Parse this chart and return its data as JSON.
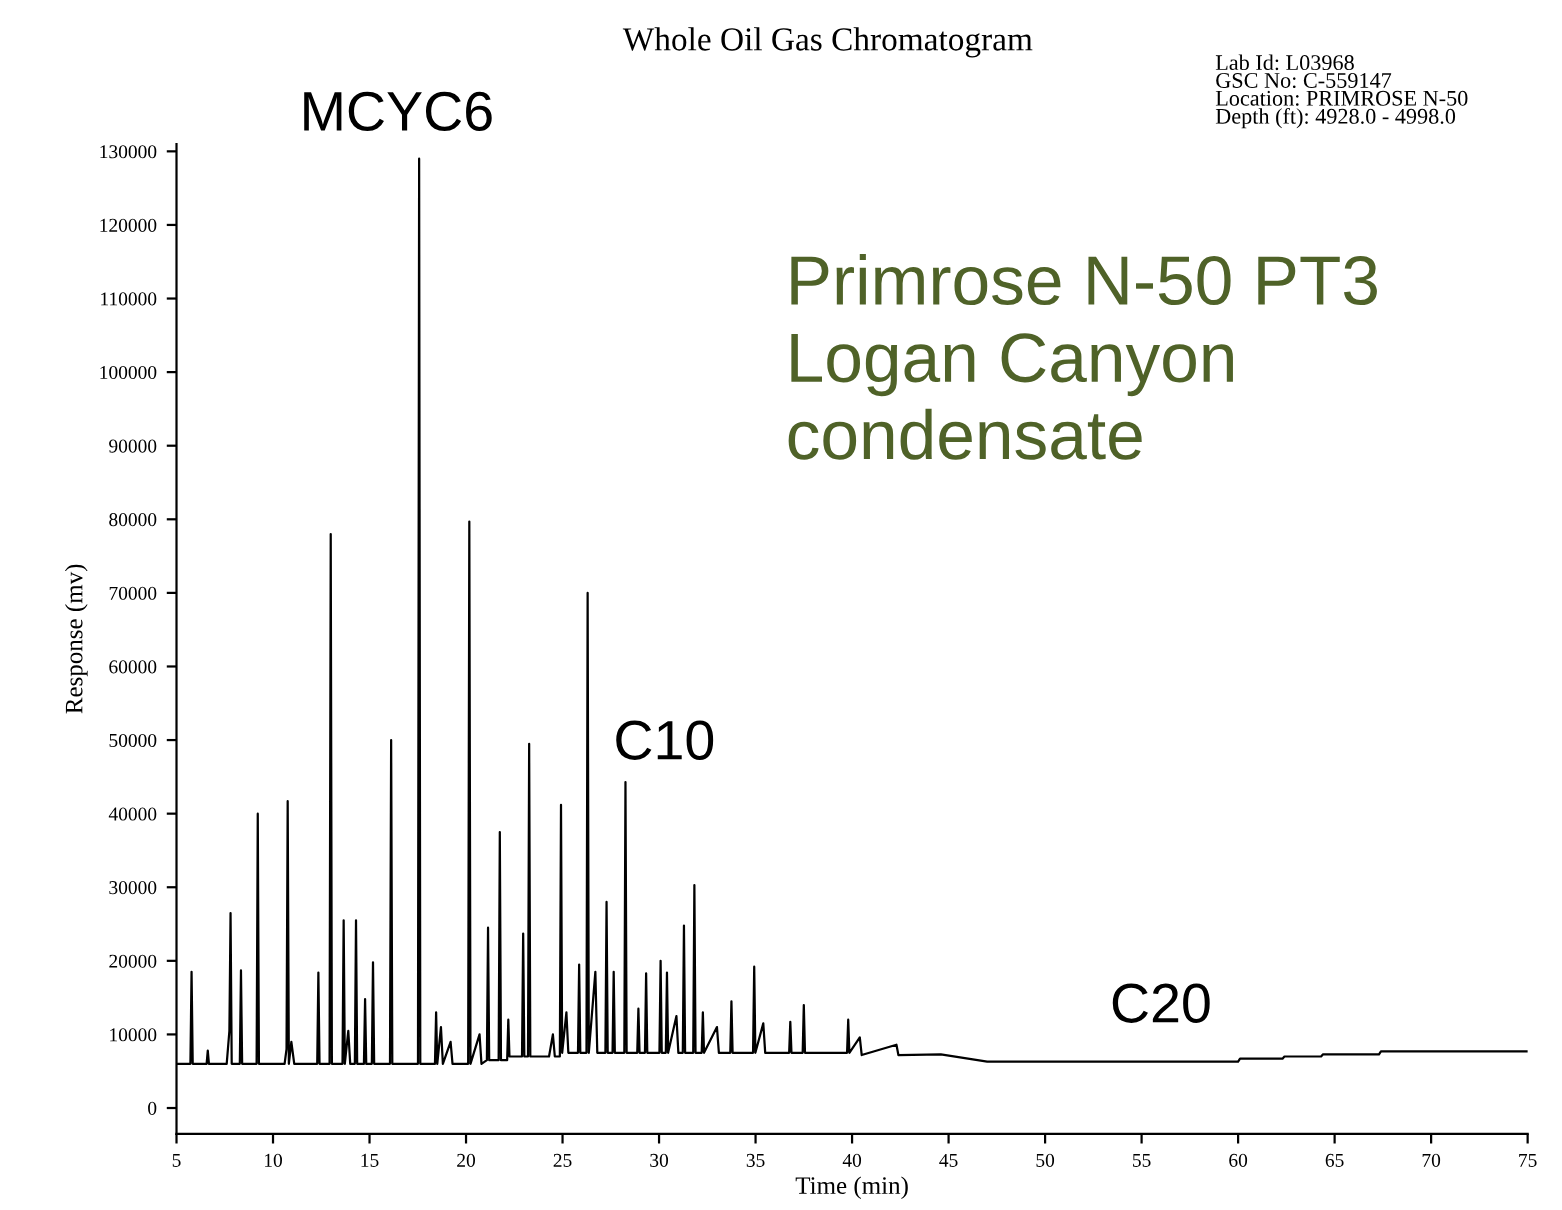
{
  "chart_data": {
    "type": "line",
    "title": "Whole Oil Gas Chromatogram",
    "xlabel": "Time (min)",
    "ylabel": "Response (mv)",
    "xlim": [
      5,
      75
    ],
    "xticks": [
      5,
      10,
      15,
      20,
      25,
      30,
      35,
      40,
      45,
      50,
      55,
      60,
      65,
      70,
      75
    ],
    "ylim": [
      -3500,
      131000
    ],
    "yticks": [
      0,
      10000,
      20000,
      30000,
      40000,
      50000,
      60000,
      70000,
      80000,
      90000,
      100000,
      110000,
      120000,
      130000
    ],
    "grid": false,
    "legend": false,
    "marker": "none",
    "line_style": "solid",
    "series": [
      {
        "color": "#000000",
        "x": [
          5,
          5.72,
          5.78,
          5.84,
          6.56,
          6.62,
          6.68,
          7.6,
          7.74,
          7.8,
          7.86,
          8.28,
          8.34,
          8.4,
          9.15,
          9.21,
          9.27,
          10.6,
          10.7,
          10.76,
          10.82,
          10.95,
          11.1,
          12.29,
          12.35,
          12.41,
          12.93,
          12.99,
          13.05,
          13.6,
          13.66,
          13.72,
          13.9,
          14.0,
          14.24,
          14.3,
          14.36,
          14.71,
          14.77,
          14.83,
          15.12,
          15.18,
          15.24,
          16.06,
          16.12,
          16.18,
          17.51,
          17.57,
          17.63,
          18.39,
          18.45,
          18.51,
          18.7,
          18.8,
          19.2,
          19.3,
          20.11,
          20.17,
          20.23,
          20.7,
          20.8,
          21.08,
          21.14,
          21.2,
          21.69,
          21.75,
          21.81,
          22.13,
          22.19,
          22.25,
          22.9,
          22.96,
          23.02,
          23.21,
          23.27,
          23.33,
          24.3,
          24.5,
          24.6,
          24.86,
          24.92,
          24.98,
          25.2,
          25.3,
          25.8,
          25.86,
          25.92,
          26.24,
          26.3,
          26.36,
          26.7,
          26.8,
          27.22,
          27.28,
          27.34,
          27.59,
          27.65,
          27.71,
          28.2,
          28.26,
          28.32,
          28.87,
          28.93,
          28.99,
          29.27,
          29.33,
          29.39,
          30.02,
          30.08,
          30.14,
          30.35,
          30.41,
          30.47,
          30.9,
          31.0,
          31.23,
          31.29,
          31.35,
          31.77,
          31.83,
          31.89,
          32.21,
          32.27,
          32.33,
          33.0,
          33.1,
          33.69,
          33.75,
          33.81,
          34.87,
          34.93,
          34.99,
          35.4,
          35.5,
          36.74,
          36.8,
          36.86,
          37.44,
          37.5,
          37.56,
          39.74,
          39.8,
          39.86,
          40.4,
          40.5,
          42.3,
          42.4,
          44.6,
          47,
          60,
          60.1,
          62.3,
          62.4,
          64.3,
          64.4,
          67.3,
          67.4,
          75
        ],
        "values": [
          6000,
          6000,
          18500,
          6000,
          6000,
          7800,
          6000,
          6000,
          10500,
          26500,
          6000,
          6000,
          18700,
          6000,
          6000,
          40000,
          6000,
          6000,
          8000,
          41700,
          6000,
          9000,
          6000,
          6000,
          18400,
          6000,
          6000,
          78000,
          6000,
          6000,
          25500,
          6000,
          10500,
          6000,
          6000,
          25500,
          6000,
          6000,
          14800,
          6000,
          6000,
          19800,
          6000,
          6000,
          50000,
          6000,
          6000,
          129000,
          6000,
          6000,
          13000,
          6000,
          11000,
          6000,
          9000,
          6000,
          6000,
          79700,
          6000,
          10000,
          6000,
          6500,
          24500,
          6500,
          6500,
          37500,
          6500,
          6500,
          12000,
          7000,
          7000,
          23700,
          7000,
          7000,
          49500,
          7000,
          7000,
          10000,
          7000,
          7000,
          41200,
          7500,
          13000,
          7500,
          7500,
          19500,
          7500,
          7500,
          70000,
          7500,
          18500,
          7500,
          7500,
          28000,
          7500,
          7500,
          18500,
          7500,
          7500,
          44300,
          7500,
          7500,
          13500,
          7500,
          7500,
          18300,
          7500,
          7500,
          20000,
          7500,
          7500,
          18400,
          7500,
          12500,
          7500,
          7500,
          24800,
          7500,
          7500,
          30300,
          7500,
          7500,
          13000,
          7500,
          11000,
          7500,
          7500,
          14500,
          7500,
          7500,
          19200,
          7500,
          11500,
          7500,
          7500,
          11700,
          7500,
          7500,
          14000,
          7500,
          7500,
          12000,
          7500,
          9600,
          7200,
          8600,
          7200,
          7300,
          6300,
          6300,
          6700,
          6700,
          7000,
          7000,
          7300,
          7300,
          7700,
          7700
        ]
      }
    ],
    "annotations": [
      {
        "text": "MCYC6",
        "x": 17.57,
        "y": 129000
      },
      {
        "text": "C10",
        "x": 28.26,
        "y": 44300
      },
      {
        "text": "C20",
        "x": 56,
        "y": 6300
      },
      "Lab Id: L03968\nGSC No: C-559147\nLocation: PRIMROSE N-50\nDepth (ft): 4928.0 - 4998.0",
      "Primrose N-50 PT3\nLogan Canyon\ncondensate"
    ]
  }
}
